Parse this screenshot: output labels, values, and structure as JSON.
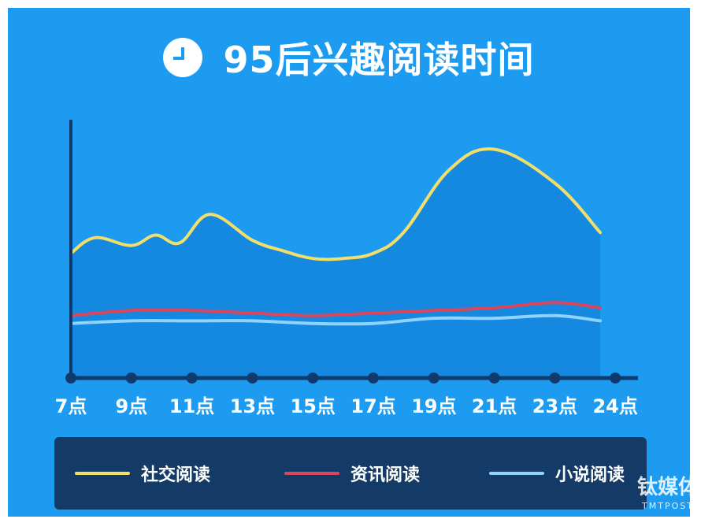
{
  "title": "95后兴趣阅读时间",
  "icons": {
    "clock": "clock-icon"
  },
  "colors": {
    "background": "#1d9bf0",
    "area_fill": "#1588e0",
    "axis": "#103a6e",
    "legend_bg": "#143a68",
    "social": "#f2df6a",
    "news": "#d9465e",
    "novel": "#8fd3ff"
  },
  "watermark": {
    "cn": "钛媒体",
    "en": "TMTPOST"
  },
  "chart_data": {
    "type": "line",
    "categories": [
      "7点",
      "9点",
      "11点",
      "13点",
      "15点",
      "17点",
      "19点",
      "21点",
      "23点",
      "24点"
    ],
    "ylim": [
      0,
      100
    ],
    "grid": false,
    "area_fill_first_series": true,
    "legend_position": "bottom",
    "series": [
      {
        "name": "社交阅读",
        "x": [
          7,
          7.8,
          9,
          9.8,
          10.6,
          11.6,
          13,
          14,
          15,
          16,
          17,
          18,
          19.5,
          21,
          23,
          24.5
        ],
        "values": [
          48,
          54,
          51,
          55,
          52,
          63,
          53,
          49,
          46,
          46,
          48,
          56,
          80,
          88,
          75,
          56
        ]
      },
      {
        "name": "资讯阅读",
        "x": [
          7,
          9,
          11,
          13,
          15,
          17,
          19,
          21,
          23,
          24.5
        ],
        "values": [
          24,
          26,
          26,
          25,
          24,
          25,
          26,
          27,
          29,
          27
        ]
      },
      {
        "name": "小说阅读",
        "x": [
          7,
          9,
          11,
          13,
          15,
          17,
          19,
          21,
          23,
          24.5
        ],
        "values": [
          21,
          22,
          22,
          22,
          21,
          21,
          23,
          23,
          24,
          22
        ]
      }
    ]
  }
}
